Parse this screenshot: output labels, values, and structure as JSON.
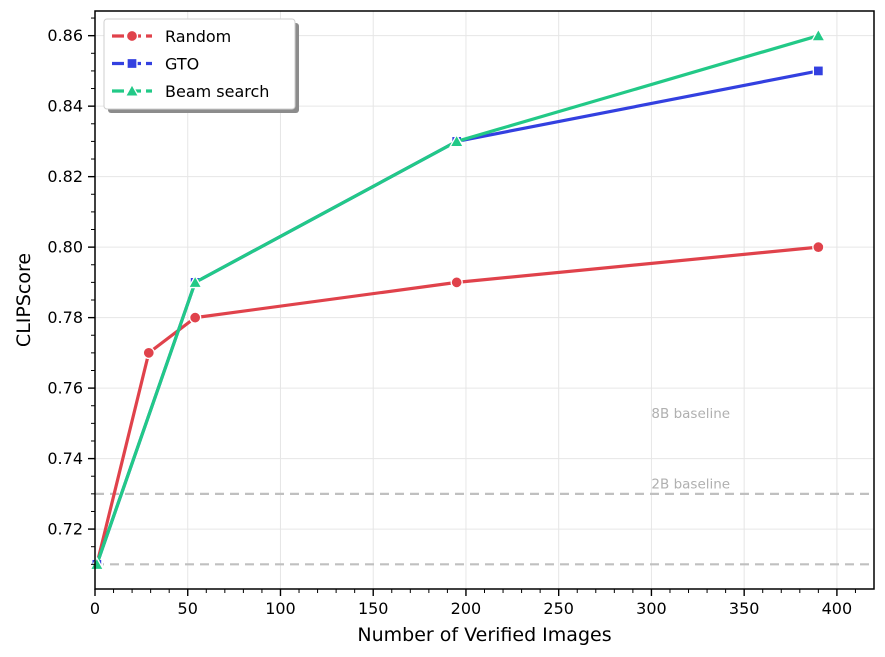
{
  "chart_data": {
    "type": "line",
    "xlabel": "Number of Verified Images",
    "ylabel": "CLIPScore",
    "xlim": [
      0,
      420
    ],
    "ylim": [
      0.703,
      0.867
    ],
    "xticks": [
      "0",
      "50",
      "100",
      "150",
      "200",
      "250",
      "300",
      "350",
      "400"
    ],
    "yticks": [
      "0.72",
      "0.74",
      "0.76",
      "0.78",
      "0.80",
      "0.82",
      "0.84",
      "0.86"
    ],
    "grid": true,
    "legend_position": "upper-left",
    "series": [
      {
        "name": "Random",
        "color": "#e0424b",
        "marker": "circle",
        "x": [
          1,
          29,
          54,
          195,
          390
        ],
        "y": [
          0.71,
          0.77,
          0.78,
          0.79,
          0.8
        ]
      },
      {
        "name": "GTO",
        "color": "#3340e0",
        "marker": "square",
        "x": [
          1,
          54,
          195,
          390
        ],
        "y": [
          0.71,
          0.79,
          0.83,
          0.85
        ]
      },
      {
        "name": "Beam search",
        "color": "#22c987",
        "marker": "triangle",
        "x": [
          1,
          54,
          195,
          390
        ],
        "y": [
          0.71,
          0.79,
          0.83,
          0.86
        ]
      }
    ],
    "reference_lines": [
      {
        "label": "8B baseline",
        "y": 0.71,
        "color": "#c0c0c0",
        "style": "dashed"
      },
      {
        "label": "2B baseline",
        "y": 0.73,
        "color": "#c0c0c0",
        "style": "dashed"
      }
    ]
  }
}
